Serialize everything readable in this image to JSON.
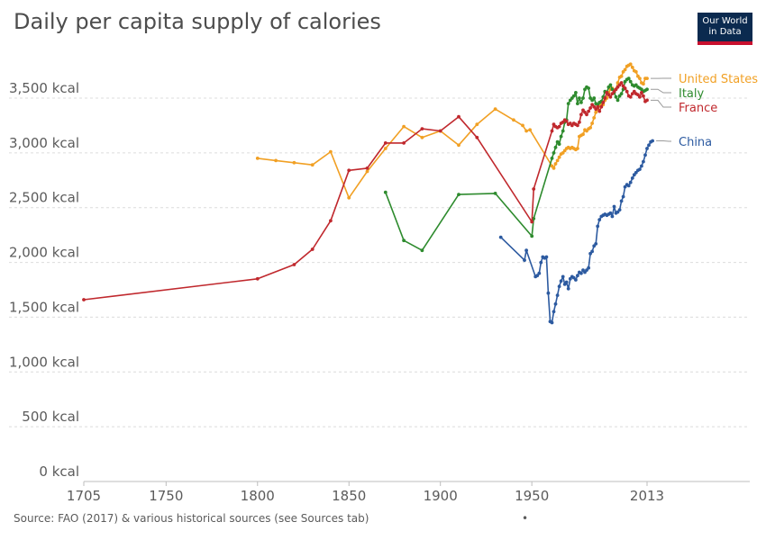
{
  "title": "Daily per capita supply of calories",
  "logo": {
    "line1": "Our World",
    "line2": "in Data"
  },
  "source": "Source: FAO (2017) & various historical sources (see Sources tab)",
  "source_dot": "•",
  "chart_data": {
    "type": "line",
    "title": "Daily per capita supply of calories",
    "xlim": [
      1705,
      2013
    ],
    "ylim": [
      0,
      3800
    ],
    "x_ticks": [
      1705,
      1750,
      1800,
      1850,
      1900,
      1950,
      2013
    ],
    "x_tick_labels": [
      "1705",
      "1750",
      "1800",
      "1850",
      "1900",
      "1950",
      "2013"
    ],
    "y_ticks": [
      0,
      500,
      1000,
      1500,
      2000,
      2500,
      3000,
      3500
    ],
    "y_tick_labels": [
      "0 kcal",
      "500 kcal",
      "1,000 kcal",
      "1,500 kcal",
      "2,000 kcal",
      "2,500 kcal",
      "3,000 kcal",
      "3,500 kcal"
    ],
    "grid": "horizontal dashed",
    "legend": "inline labels at right",
    "series": [
      {
        "name": "United States",
        "color": "#f1a024",
        "points": [
          [
            1800,
            2950
          ],
          [
            1810,
            2930
          ],
          [
            1820,
            2910
          ],
          [
            1830,
            2890
          ],
          [
            1840,
            3010
          ],
          [
            1850,
            2590
          ],
          [
            1860,
            2830
          ],
          [
            1870,
            3040
          ],
          [
            1880,
            3240
          ],
          [
            1890,
            3140
          ],
          [
            1900,
            3200
          ],
          [
            1910,
            3070
          ],
          [
            1920,
            3260
          ],
          [
            1930,
            3400
          ],
          [
            1940,
            3300
          ],
          [
            1945,
            3250
          ],
          [
            1947,
            3200
          ],
          [
            1949,
            3210
          ],
          [
            1961,
            2880
          ],
          [
            1962,
            2860
          ],
          [
            1963,
            2900
          ],
          [
            1964,
            2930
          ],
          [
            1965,
            2960
          ],
          [
            1966,
            2990
          ],
          [
            1967,
            3000
          ],
          [
            1968,
            3020
          ],
          [
            1969,
            3040
          ],
          [
            1970,
            3050
          ],
          [
            1971,
            3040
          ],
          [
            1972,
            3050
          ],
          [
            1973,
            3040
          ],
          [
            1974,
            3030
          ],
          [
            1975,
            3040
          ],
          [
            1976,
            3150
          ],
          [
            1977,
            3160
          ],
          [
            1978,
            3170
          ],
          [
            1979,
            3210
          ],
          [
            1980,
            3200
          ],
          [
            1981,
            3220
          ],
          [
            1982,
            3230
          ],
          [
            1983,
            3270
          ],
          [
            1984,
            3320
          ],
          [
            1985,
            3370
          ],
          [
            1986,
            3400
          ],
          [
            1987,
            3430
          ],
          [
            1988,
            3450
          ],
          [
            1989,
            3440
          ],
          [
            1990,
            3480
          ],
          [
            1991,
            3500
          ],
          [
            1992,
            3550
          ],
          [
            1993,
            3580
          ],
          [
            1994,
            3590
          ],
          [
            1995,
            3570
          ],
          [
            1996,
            3580
          ],
          [
            1997,
            3640
          ],
          [
            1998,
            3690
          ],
          [
            1999,
            3700
          ],
          [
            2000,
            3740
          ],
          [
            2001,
            3760
          ],
          [
            2002,
            3790
          ],
          [
            2003,
            3800
          ],
          [
            2004,
            3810
          ],
          [
            2005,
            3780
          ],
          [
            2006,
            3750
          ],
          [
            2007,
            3740
          ],
          [
            2008,
            3700
          ],
          [
            2009,
            3680
          ],
          [
            2010,
            3640
          ],
          [
            2011,
            3630
          ],
          [
            2012,
            3680
          ],
          [
            2013,
            3680
          ]
        ]
      },
      {
        "name": "Italy",
        "color": "#2e8b2e",
        "points": [
          [
            1870,
            2640
          ],
          [
            1880,
            2200
          ],
          [
            1890,
            2110
          ],
          [
            1910,
            2620
          ],
          [
            1930,
            2630
          ],
          [
            1950,
            2240
          ],
          [
            1951,
            2400
          ],
          [
            1961,
            2950
          ],
          [
            1962,
            3000
          ],
          [
            1963,
            3050
          ],
          [
            1964,
            3100
          ],
          [
            1965,
            3080
          ],
          [
            1966,
            3150
          ],
          [
            1967,
            3200
          ],
          [
            1968,
            3280
          ],
          [
            1969,
            3300
          ],
          [
            1970,
            3450
          ],
          [
            1971,
            3480
          ],
          [
            1972,
            3500
          ],
          [
            1973,
            3520
          ],
          [
            1974,
            3550
          ],
          [
            1975,
            3450
          ],
          [
            1976,
            3500
          ],
          [
            1977,
            3460
          ],
          [
            1978,
            3500
          ],
          [
            1979,
            3580
          ],
          [
            1980,
            3600
          ],
          [
            1981,
            3590
          ],
          [
            1982,
            3500
          ],
          [
            1983,
            3480
          ],
          [
            1984,
            3500
          ],
          [
            1985,
            3450
          ],
          [
            1986,
            3440
          ],
          [
            1987,
            3460
          ],
          [
            1988,
            3470
          ],
          [
            1989,
            3510
          ],
          [
            1990,
            3560
          ],
          [
            1991,
            3550
          ],
          [
            1992,
            3600
          ],
          [
            1993,
            3620
          ],
          [
            1994,
            3580
          ],
          [
            1995,
            3550
          ],
          [
            1996,
            3510
          ],
          [
            1997,
            3480
          ],
          [
            1998,
            3520
          ],
          [
            1999,
            3540
          ],
          [
            2000,
            3580
          ],
          [
            2001,
            3650
          ],
          [
            2002,
            3670
          ],
          [
            2003,
            3680
          ],
          [
            2004,
            3650
          ],
          [
            2005,
            3620
          ],
          [
            2006,
            3610
          ],
          [
            2007,
            3620
          ],
          [
            2008,
            3600
          ],
          [
            2009,
            3590
          ],
          [
            2010,
            3580
          ],
          [
            2011,
            3560
          ],
          [
            2012,
            3570
          ],
          [
            2013,
            3580
          ]
        ]
      },
      {
        "name": "France",
        "color": "#c0282d",
        "points": [
          [
            1705,
            1660
          ],
          [
            1800,
            1850
          ],
          [
            1820,
            1980
          ],
          [
            1830,
            2120
          ],
          [
            1840,
            2380
          ],
          [
            1850,
            2840
          ],
          [
            1860,
            2860
          ],
          [
            1870,
            3090
          ],
          [
            1880,
            3090
          ],
          [
            1890,
            3220
          ],
          [
            1900,
            3200
          ],
          [
            1910,
            3330
          ],
          [
            1920,
            3140
          ],
          [
            1950,
            2370
          ],
          [
            1951,
            2670
          ],
          [
            1961,
            3200
          ],
          [
            1962,
            3260
          ],
          [
            1963,
            3240
          ],
          [
            1964,
            3230
          ],
          [
            1965,
            3240
          ],
          [
            1966,
            3270
          ],
          [
            1967,
            3280
          ],
          [
            1968,
            3300
          ],
          [
            1969,
            3290
          ],
          [
            1970,
            3260
          ],
          [
            1971,
            3270
          ],
          [
            1972,
            3250
          ],
          [
            1973,
            3270
          ],
          [
            1974,
            3260
          ],
          [
            1975,
            3250
          ],
          [
            1976,
            3280
          ],
          [
            1977,
            3350
          ],
          [
            1978,
            3390
          ],
          [
            1979,
            3370
          ],
          [
            1980,
            3350
          ],
          [
            1981,
            3380
          ],
          [
            1982,
            3410
          ],
          [
            1983,
            3440
          ],
          [
            1984,
            3420
          ],
          [
            1985,
            3400
          ],
          [
            1986,
            3420
          ],
          [
            1987,
            3380
          ],
          [
            1988,
            3420
          ],
          [
            1989,
            3460
          ],
          [
            1990,
            3500
          ],
          [
            1991,
            3550
          ],
          [
            1992,
            3530
          ],
          [
            1993,
            3510
          ],
          [
            1994,
            3540
          ],
          [
            1995,
            3560
          ],
          [
            1996,
            3580
          ],
          [
            1997,
            3600
          ],
          [
            1998,
            3620
          ],
          [
            1999,
            3640
          ],
          [
            2000,
            3610
          ],
          [
            2001,
            3590
          ],
          [
            2002,
            3560
          ],
          [
            2003,
            3520
          ],
          [
            2004,
            3510
          ],
          [
            2005,
            3540
          ],
          [
            2006,
            3560
          ],
          [
            2007,
            3540
          ],
          [
            2008,
            3530
          ],
          [
            2009,
            3510
          ],
          [
            2010,
            3550
          ],
          [
            2011,
            3520
          ],
          [
            2012,
            3470
          ],
          [
            2013,
            3480
          ]
        ]
      },
      {
        "name": "China",
        "color": "#2c5aa0",
        "points": [
          [
            1933,
            2230
          ],
          [
            1946,
            2020
          ],
          [
            1947,
            2110
          ],
          [
            1952,
            1870
          ],
          [
            1953,
            1880
          ],
          [
            1954,
            1900
          ],
          [
            1955,
            2000
          ],
          [
            1956,
            2050
          ],
          [
            1957,
            2040
          ],
          [
            1958,
            2050
          ],
          [
            1959,
            1720
          ],
          [
            1960,
            1460
          ],
          [
            1961,
            1450
          ],
          [
            1962,
            1550
          ],
          [
            1963,
            1620
          ],
          [
            1964,
            1700
          ],
          [
            1965,
            1780
          ],
          [
            1966,
            1830
          ],
          [
            1967,
            1870
          ],
          [
            1968,
            1800
          ],
          [
            1969,
            1820
          ],
          [
            1970,
            1760
          ],
          [
            1971,
            1850
          ],
          [
            1972,
            1870
          ],
          [
            1973,
            1860
          ],
          [
            1974,
            1840
          ],
          [
            1975,
            1880
          ],
          [
            1976,
            1910
          ],
          [
            1977,
            1900
          ],
          [
            1978,
            1930
          ],
          [
            1979,
            1910
          ],
          [
            1980,
            1930
          ],
          [
            1981,
            1950
          ],
          [
            1982,
            2080
          ],
          [
            1983,
            2100
          ],
          [
            1984,
            2150
          ],
          [
            1985,
            2170
          ],
          [
            1986,
            2330
          ],
          [
            1987,
            2390
          ],
          [
            1988,
            2420
          ],
          [
            1989,
            2430
          ],
          [
            1990,
            2440
          ],
          [
            1991,
            2430
          ],
          [
            1992,
            2440
          ],
          [
            1993,
            2450
          ],
          [
            1994,
            2420
          ],
          [
            1995,
            2510
          ],
          [
            1996,
            2450
          ],
          [
            1997,
            2460
          ],
          [
            1998,
            2480
          ],
          [
            1999,
            2560
          ],
          [
            2000,
            2600
          ],
          [
            2001,
            2690
          ],
          [
            2002,
            2710
          ],
          [
            2003,
            2700
          ],
          [
            2004,
            2730
          ],
          [
            2005,
            2770
          ],
          [
            2006,
            2800
          ],
          [
            2007,
            2820
          ],
          [
            2008,
            2840
          ],
          [
            2009,
            2850
          ],
          [
            2010,
            2880
          ],
          [
            2011,
            2920
          ],
          [
            2012,
            2980
          ],
          [
            2013,
            3040
          ],
          [
            2014,
            3070
          ],
          [
            2015,
            3100
          ],
          [
            2016,
            3110
          ]
        ]
      }
    ]
  }
}
